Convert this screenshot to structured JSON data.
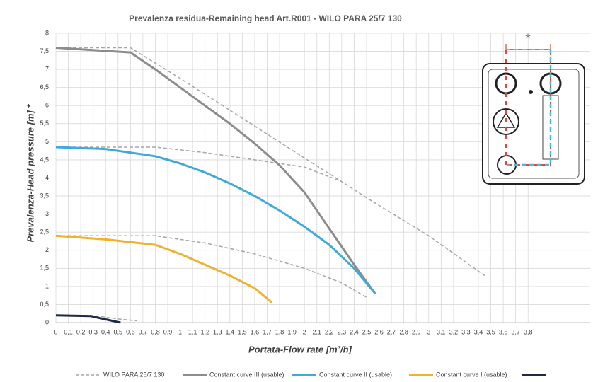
{
  "chart_data": {
    "type": "line",
    "title": "Prevalenza residua-Remaining head Art.R001 - WILO PARA 25/7 130",
    "x_label": "Portata-Flow rate [m³/h]",
    "y_label": "Prevalenza-Head pressure [m] *",
    "annotation": "*",
    "xlim": [
      0,
      4.3
    ],
    "ylim": [
      0,
      8
    ],
    "grid": true,
    "xticks": [
      0,
      {
        "value": 0.1,
        "label": "0,1"
      },
      {
        "value": 0.2,
        "label": "0,2"
      },
      {
        "value": 0.3,
        "label": "0,3"
      },
      {
        "value": 0.4,
        "label": "0,4"
      },
      {
        "value": 0.5,
        "label": "0,5"
      },
      {
        "value": 0.6,
        "label": "0,6"
      },
      {
        "value": 0.7,
        "label": "0,7"
      },
      {
        "value": 0.8,
        "label": "0,8"
      },
      {
        "value": 0.9,
        "label": "0,9"
      },
      1,
      {
        "value": 1.1,
        "label": "1,1"
      },
      {
        "value": 1.2,
        "label": "1,2"
      },
      {
        "value": 1.3,
        "label": "1,3"
      },
      {
        "value": 1.4,
        "label": "1,4"
      },
      {
        "value": 1.5,
        "label": "1,5"
      },
      {
        "value": 1.6,
        "label": "1,6"
      },
      {
        "value": 1.7,
        "label": "1,7"
      },
      {
        "value": 1.8,
        "label": "1,8"
      },
      {
        "value": 1.9,
        "label": "1,9"
      },
      2,
      {
        "value": 2.1,
        "label": "2,1"
      },
      {
        "value": 2.2,
        "label": "2,2"
      },
      {
        "value": 2.3,
        "label": "2,3"
      },
      {
        "value": 2.4,
        "label": "2,4"
      },
      {
        "value": 2.5,
        "label": "2,5"
      },
      {
        "value": 2.6,
        "label": "2,6"
      },
      {
        "value": 2.7,
        "label": "2,7"
      },
      {
        "value": 2.8,
        "label": "2,8"
      },
      {
        "value": 2.9,
        "label": "2,9"
      },
      3,
      {
        "value": 3.1,
        "label": "3,1"
      },
      {
        "value": 3.2,
        "label": "3,2"
      },
      {
        "value": 3.3,
        "label": "3,3"
      },
      {
        "value": 3.4,
        "label": "3,4"
      },
      {
        "value": 3.5,
        "label": "3,5"
      },
      {
        "value": 3.6,
        "label": "3,6"
      },
      {
        "value": 3.7,
        "label": "3,7"
      },
      {
        "value": 3.8,
        "label": "3,8"
      }
    ],
    "yticks": [
      0,
      {
        "value": 0.5,
        "label": "0,5"
      },
      1,
      {
        "value": 1.5,
        "label": "1,5"
      },
      2,
      {
        "value": 2.5,
        "label": "2,5"
      },
      3,
      {
        "value": 3.5,
        "label": "3,5"
      },
      4,
      {
        "value": 4.5,
        "label": "4,5"
      },
      5,
      {
        "value": 5.5,
        "label": "5,5"
      },
      6,
      {
        "value": 6.5,
        "label": "6,5"
      },
      7,
      {
        "value": 7.5,
        "label": "7,5"
      },
      8
    ],
    "series": [
      {
        "name": "WILO PARA 25/7 130",
        "color": "#a6a6a6",
        "dashed": true,
        "curves": [
          {
            "x": [
              0,
              0.6,
              1,
              1.5,
              2,
              2.3,
              2.5,
              3,
              3.45
            ],
            "values": [
              7.6,
              7.6,
              6.75,
              5.65,
              4.55,
              3.9,
              3.45,
              2.4,
              1.3
            ]
          },
          {
            "x": [
              0,
              0.8,
              1.2,
              1.6,
              2,
              2.3
            ],
            "values": [
              4.85,
              4.85,
              4.7,
              4.5,
              4.3,
              3.9
            ]
          },
          {
            "x": [
              0,
              0.8,
              1.2,
              1.6,
              2,
              2.3,
              2.5
            ],
            "values": [
              2.4,
              2.4,
              2.2,
              1.9,
              1.5,
              1.1,
              0.7
            ]
          },
          {
            "x": [
              0,
              0.3,
              0.5,
              0.65
            ],
            "values": [
              0.2,
              0.2,
              0.1,
              0.05
            ]
          }
        ]
      },
      {
        "name": "Constant curve III (usable)",
        "color": "#8c8c8c",
        "dashed": false,
        "curves": [
          {
            "x": [
              0,
              0.6,
              0.8,
              1,
              1.2,
              1.4,
              1.6,
              1.8,
              2,
              2.2,
              2.4,
              2.57
            ],
            "values": [
              7.6,
              7.47,
              7,
              6.5,
              6,
              5.5,
              4.95,
              4.35,
              3.6,
              2.6,
              1.6,
              0.8
            ]
          }
        ]
      },
      {
        "name": "Constant curve II (usable)",
        "color": "#3fa9d8",
        "dashed": false,
        "curves": [
          {
            "x": [
              0,
              0.4,
              0.8,
              1,
              1.2,
              1.4,
              1.6,
              1.8,
              2,
              2.2,
              2.4,
              2.57
            ],
            "values": [
              4.85,
              4.8,
              4.6,
              4.4,
              4.15,
              3.85,
              3.5,
              3.1,
              2.65,
              2.15,
              1.5,
              0.8
            ]
          }
        ]
      },
      {
        "name": "Constant curve I (usable)",
        "color": "#f0b030",
        "dashed": false,
        "curves": [
          {
            "x": [
              0,
              0.4,
              0.8,
              1,
              1.2,
              1.4,
              1.6,
              1.74
            ],
            "values": [
              2.4,
              2.3,
              2.15,
              1.9,
              1.6,
              1.3,
              0.95,
              0.55
            ]
          }
        ]
      },
      {
        "name": null,
        "color": "#1f2a44",
        "dashed": false,
        "curves": [
          {
            "x": [
              0,
              0.28,
              0.45,
              0.52
            ],
            "values": [
              0.2,
              0.18,
              0.05,
              0
            ]
          }
        ]
      }
    ]
  }
}
